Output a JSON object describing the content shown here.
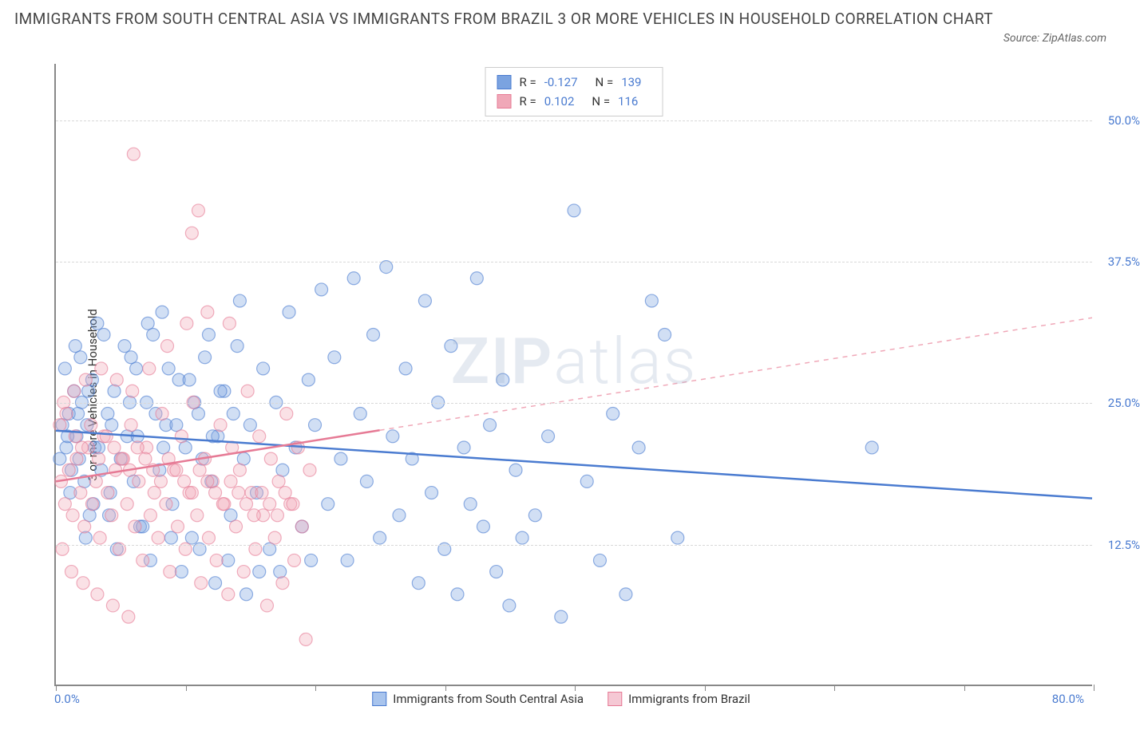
{
  "title": "IMMIGRANTS FROM SOUTH CENTRAL ASIA VS IMMIGRANTS FROM BRAZIL 3 OR MORE VEHICLES IN HOUSEHOLD CORRELATION CHART",
  "source": "Source: ZipAtlas.com",
  "ylabel": "3 or more Vehicles in Household",
  "watermark_a": "ZIP",
  "watermark_b": "atlas",
  "chart": {
    "type": "scatter",
    "xlim": [
      0,
      80
    ],
    "ylim": [
      0,
      55
    ],
    "x_tick_positions": [
      0,
      10,
      20,
      30,
      40,
      50,
      60,
      70,
      80
    ],
    "y_gridlines": [
      12.5,
      25.0,
      37.5,
      50.0
    ],
    "y_tick_labels": [
      "12.5%",
      "25.0%",
      "37.5%",
      "50.0%"
    ],
    "x_min_label": "0.0%",
    "x_max_label": "80.0%",
    "background_color": "#ffffff",
    "grid_color": "#d8d8d8",
    "axis_color": "#888888",
    "tick_label_color": "#4a7bd0",
    "marker_radius": 8,
    "marker_opacity": 0.35,
    "series": [
      {
        "name": "Immigrants from South Central Asia",
        "color_fill": "#7ba3e0",
        "color_stroke": "#4a7bd0",
        "stats": {
          "R": "-0.127",
          "N": "139"
        },
        "trend": {
          "x1": 0,
          "y1": 22.5,
          "x2": 80,
          "y2": 16.5,
          "solid_until_x": 80,
          "dash_color": "#4a7bd0"
        },
        "points": [
          [
            0.5,
            23
          ],
          [
            0.8,
            21
          ],
          [
            1.0,
            24
          ],
          [
            1.2,
            19
          ],
          [
            1.4,
            26
          ],
          [
            1.6,
            22
          ],
          [
            1.8,
            20
          ],
          [
            2.0,
            25
          ],
          [
            2.2,
            18
          ],
          [
            2.4,
            23
          ],
          [
            2.6,
            15
          ],
          [
            2.8,
            27
          ],
          [
            3.0,
            21
          ],
          [
            3.5,
            19
          ],
          [
            4.0,
            24
          ],
          [
            4.2,
            17
          ],
          [
            4.5,
            26
          ],
          [
            5.0,
            20
          ],
          [
            5.5,
            22
          ],
          [
            6.0,
            18
          ],
          [
            6.2,
            28
          ],
          [
            6.5,
            14
          ],
          [
            7.0,
            25
          ],
          [
            7.5,
            31
          ],
          [
            8.0,
            19
          ],
          [
            8.5,
            23
          ],
          [
            9.0,
            16
          ],
          [
            9.5,
            27
          ],
          [
            10.0,
            21
          ],
          [
            10.5,
            13
          ],
          [
            11.0,
            24
          ],
          [
            11.5,
            29
          ],
          [
            12.0,
            18
          ],
          [
            12.5,
            22
          ],
          [
            13.0,
            26
          ],
          [
            13.5,
            15
          ],
          [
            14.0,
            30
          ],
          [
            14.5,
            20
          ],
          [
            15.0,
            23
          ],
          [
            15.5,
            17
          ],
          [
            16.0,
            28
          ],
          [
            16.5,
            12
          ],
          [
            17.0,
            25
          ],
          [
            17.5,
            19
          ],
          [
            18.0,
            33
          ],
          [
            18.5,
            21
          ],
          [
            19.0,
            14
          ],
          [
            19.5,
            27
          ],
          [
            20.0,
            23
          ],
          [
            20.5,
            35
          ],
          [
            21.0,
            16
          ],
          [
            21.5,
            29
          ],
          [
            22.0,
            20
          ],
          [
            22.5,
            11
          ],
          [
            23.0,
            36
          ],
          [
            23.5,
            24
          ],
          [
            24.0,
            18
          ],
          [
            24.5,
            31
          ],
          [
            25.0,
            13
          ],
          [
            25.5,
            37
          ],
          [
            26.0,
            22
          ],
          [
            26.5,
            15
          ],
          [
            27.0,
            28
          ],
          [
            27.5,
            20
          ],
          [
            28.0,
            9
          ],
          [
            28.5,
            34
          ],
          [
            29.0,
            17
          ],
          [
            29.5,
            25
          ],
          [
            30.0,
            12
          ],
          [
            30.5,
            30
          ],
          [
            31.0,
            8
          ],
          [
            31.5,
            21
          ],
          [
            32.0,
            16
          ],
          [
            32.5,
            36
          ],
          [
            33.0,
            14
          ],
          [
            33.5,
            23
          ],
          [
            34.0,
            10
          ],
          [
            34.5,
            27
          ],
          [
            35.0,
            7
          ],
          [
            35.5,
            19
          ],
          [
            36.0,
            13
          ],
          [
            37.0,
            15
          ],
          [
            38.0,
            22
          ],
          [
            39.0,
            6
          ],
          [
            40.0,
            42
          ],
          [
            41.0,
            18
          ],
          [
            42.0,
            11
          ],
          [
            43.0,
            24
          ],
          [
            44.0,
            8
          ],
          [
            45.0,
            21
          ],
          [
            46.0,
            34
          ],
          [
            47.0,
            31
          ],
          [
            48.0,
            13
          ],
          [
            63.0,
            21
          ],
          [
            1.5,
            30
          ],
          [
            3.2,
            32
          ],
          [
            5.8,
            29
          ],
          [
            8.2,
            33
          ],
          [
            11.8,
            31
          ],
          [
            14.2,
            34
          ],
          [
            2.3,
            13
          ],
          [
            4.7,
            12
          ],
          [
            7.3,
            11
          ],
          [
            9.7,
            10
          ],
          [
            12.3,
            9
          ],
          [
            14.7,
            8
          ],
          [
            17.3,
            10
          ],
          [
            19.7,
            11
          ],
          [
            1.1,
            17
          ],
          [
            2.9,
            16
          ],
          [
            4.1,
            15
          ],
          [
            6.7,
            14
          ],
          [
            8.9,
            13
          ],
          [
            11.1,
            12
          ],
          [
            13.3,
            11
          ],
          [
            15.7,
            10
          ],
          [
            0.7,
            28
          ],
          [
            1.9,
            29
          ],
          [
            3.7,
            31
          ],
          [
            5.3,
            30
          ],
          [
            7.1,
            32
          ],
          [
            8.7,
            28
          ],
          [
            10.3,
            27
          ],
          [
            12.7,
            26
          ],
          [
            0.3,
            20
          ],
          [
            0.9,
            22
          ],
          [
            1.7,
            24
          ],
          [
            2.5,
            26
          ],
          [
            3.3,
            21
          ],
          [
            4.3,
            23
          ],
          [
            5.7,
            25
          ],
          [
            6.3,
            22
          ],
          [
            7.7,
            24
          ],
          [
            8.3,
            21
          ],
          [
            9.3,
            23
          ],
          [
            10.7,
            25
          ],
          [
            11.3,
            20
          ],
          [
            12.1,
            22
          ],
          [
            13.7,
            24
          ]
        ]
      },
      {
        "name": "Immigrants from Brazil",
        "color_fill": "#f0a8b8",
        "color_stroke": "#e67a95",
        "stats": {
          "R": "0.102",
          "N": "116"
        },
        "trend": {
          "x1": 0,
          "y1": 18.0,
          "x2": 80,
          "y2": 32.5,
          "solid_until_x": 25,
          "dash_color": "#f0a8b8"
        },
        "points": [
          [
            0.4,
            18
          ],
          [
            0.7,
            16
          ],
          [
            1.0,
            19
          ],
          [
            1.3,
            15
          ],
          [
            1.6,
            20
          ],
          [
            1.9,
            17
          ],
          [
            2.2,
            14
          ],
          [
            2.5,
            21
          ],
          [
            2.8,
            16
          ],
          [
            3.1,
            18
          ],
          [
            3.4,
            13
          ],
          [
            3.7,
            22
          ],
          [
            4.0,
            17
          ],
          [
            4.3,
            15
          ],
          [
            4.6,
            19
          ],
          [
            4.9,
            12
          ],
          [
            5.2,
            20
          ],
          [
            5.5,
            16
          ],
          [
            5.8,
            23
          ],
          [
            6.1,
            14
          ],
          [
            6.4,
            18
          ],
          [
            6.7,
            11
          ],
          [
            7.0,
            21
          ],
          [
            7.3,
            15
          ],
          [
            7.6,
            17
          ],
          [
            7.9,
            13
          ],
          [
            8.2,
            24
          ],
          [
            8.5,
            16
          ],
          [
            8.8,
            10
          ],
          [
            9.1,
            19
          ],
          [
            9.4,
            14
          ],
          [
            9.7,
            22
          ],
          [
            10.0,
            12
          ],
          [
            10.3,
            17
          ],
          [
            10.6,
            25
          ],
          [
            10.9,
            15
          ],
          [
            11.2,
            9
          ],
          [
            11.5,
            20
          ],
          [
            11.8,
            13
          ],
          [
            12.1,
            18
          ],
          [
            12.4,
            11
          ],
          [
            12.7,
            23
          ],
          [
            13.0,
            16
          ],
          [
            13.3,
            8
          ],
          [
            13.6,
            21
          ],
          [
            13.9,
            14
          ],
          [
            14.2,
            19
          ],
          [
            14.5,
            10
          ],
          [
            14.8,
            26
          ],
          [
            15.1,
            17
          ],
          [
            15.4,
            12
          ],
          [
            15.7,
            22
          ],
          [
            16.0,
            15
          ],
          [
            16.3,
            7
          ],
          [
            16.6,
            20
          ],
          [
            16.9,
            13
          ],
          [
            17.2,
            18
          ],
          [
            17.5,
            9
          ],
          [
            17.8,
            24
          ],
          [
            18.1,
            16
          ],
          [
            18.4,
            11
          ],
          [
            18.7,
            21
          ],
          [
            19.0,
            14
          ],
          [
            19.3,
            4
          ],
          [
            19.6,
            19
          ],
          [
            0.5,
            12
          ],
          [
            1.2,
            10
          ],
          [
            2.1,
            9
          ],
          [
            3.2,
            8
          ],
          [
            4.4,
            7
          ],
          [
            5.6,
            6
          ],
          [
            0.6,
            25
          ],
          [
            1.4,
            26
          ],
          [
            2.3,
            27
          ],
          [
            3.5,
            28
          ],
          [
            4.7,
            27
          ],
          [
            5.9,
            26
          ],
          [
            7.2,
            28
          ],
          [
            8.6,
            30
          ],
          [
            10.1,
            32
          ],
          [
            11.7,
            33
          ],
          [
            13.4,
            32
          ],
          [
            6.0,
            47
          ],
          [
            10.5,
            40
          ],
          [
            11.0,
            42
          ],
          [
            0.3,
            23
          ],
          [
            0.8,
            24
          ],
          [
            1.5,
            22
          ],
          [
            2.0,
            21
          ],
          [
            2.7,
            23
          ],
          [
            3.3,
            20
          ],
          [
            3.9,
            22
          ],
          [
            4.5,
            21
          ],
          [
            5.1,
            20
          ],
          [
            5.7,
            19
          ],
          [
            6.3,
            21
          ],
          [
            6.9,
            20
          ],
          [
            7.5,
            19
          ],
          [
            8.1,
            18
          ],
          [
            8.7,
            20
          ],
          [
            9.3,
            19
          ],
          [
            9.9,
            18
          ],
          [
            10.5,
            17
          ],
          [
            11.1,
            19
          ],
          [
            11.7,
            18
          ],
          [
            12.3,
            17
          ],
          [
            12.9,
            16
          ],
          [
            13.5,
            18
          ],
          [
            14.1,
            17
          ],
          [
            14.7,
            16
          ],
          [
            15.3,
            15
          ],
          [
            15.9,
            17
          ],
          [
            16.5,
            16
          ],
          [
            17.1,
            15
          ],
          [
            17.7,
            17
          ],
          [
            18.3,
            16
          ]
        ]
      }
    ],
    "bottom_legend": [
      {
        "label": "Immigrants from South Central Asia",
        "fill": "#a8c4ed",
        "stroke": "#4a7bd0"
      },
      {
        "label": "Immigrants from Brazil",
        "fill": "#f5c8d4",
        "stroke": "#e67a95"
      }
    ]
  }
}
